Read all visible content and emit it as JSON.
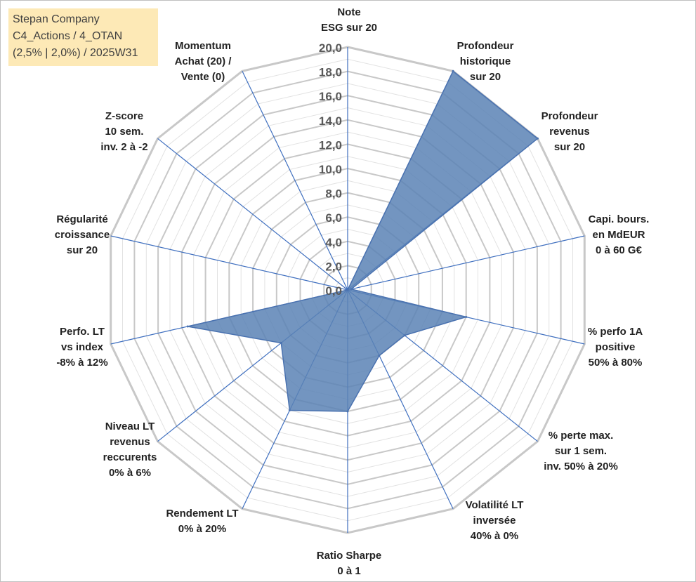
{
  "chart_data": {
    "type": "radar",
    "title_lines": [
      "Stepan Company",
      "C4_Actions / 4_OTAN",
      "(2,5% | 2,0%) / 2025W31"
    ],
    "axes": [
      {
        "label": [
          "Note",
          "ESG sur 20"
        ]
      },
      {
        "label": [
          "Profondeur",
          "historique",
          "sur 20"
        ]
      },
      {
        "label": [
          "Profondeur",
          "revenus",
          "sur 20"
        ]
      },
      {
        "label": [
          "Capi. bours.",
          "en MdEUR",
          "0 à 60 G€"
        ]
      },
      {
        "label": [
          "% perfo 1A",
          "positive",
          "50% à 80%"
        ]
      },
      {
        "label": [
          "% perte max.",
          "sur 1 sem.",
          "inv. 50% à 20%"
        ]
      },
      {
        "label": [
          "Volatilité LT",
          "inversée",
          "40% à 0%"
        ]
      },
      {
        "label": [
          "Ratio Sharpe",
          "0 à 1"
        ]
      },
      {
        "label": [
          "Rendement LT",
          "0% à 20%"
        ]
      },
      {
        "label": [
          "Niveau LT",
          "revenus",
          "reccurents",
          "0% à 6%"
        ]
      },
      {
        "label": [
          "Perfo. LT",
          "vs index",
          "-8% à 12%"
        ]
      },
      {
        "label": [
          "Régularité",
          "croissance",
          "sur 20"
        ]
      },
      {
        "label": [
          "Z-score",
          "10 sem.",
          "inv. 2 à -2"
        ]
      },
      {
        "label": [
          "Momentum",
          "Achat (20) /",
          "Vente (0)"
        ]
      }
    ],
    "series": [
      {
        "values": [
          0,
          20,
          20,
          0.3,
          10,
          6,
          6,
          10,
          11,
          7,
          13.5,
          0,
          0,
          0
        ]
      }
    ],
    "ticks": [
      "0,0",
      "2,0",
      "4,0",
      "6,0",
      "8,0",
      "10,0",
      "12,0",
      "14,0",
      "16,0",
      "18,0",
      "20,0"
    ],
    "ylim": [
      0,
      20
    ],
    "grid": true,
    "colors": {
      "fill": "#5b83b5",
      "stroke": "#4a72b0",
      "grid": "#c8c8c8",
      "spoke": "#3f6fbf",
      "text": "#222222"
    }
  }
}
